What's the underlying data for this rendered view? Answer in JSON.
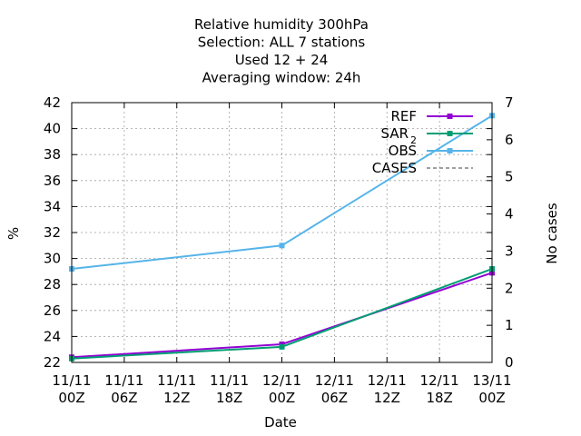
{
  "chart_data": {
    "type": "line",
    "title_lines": [
      "Relative humidity 300hPa",
      "Selection: ALL      7 stations",
      "Used  12 + 24",
      "Averaging window: 24h"
    ],
    "xlabel": "Date",
    "ylabel": "%",
    "y2label": "No cases",
    "x_ticks": [
      {
        "x": 0,
        "line1": "11/11",
        "line2": "00Z"
      },
      {
        "x": 6,
        "line1": "11/11",
        "line2": "06Z"
      },
      {
        "x": 12,
        "line1": "11/11",
        "line2": "12Z"
      },
      {
        "x": 18,
        "line1": "11/11",
        "line2": "18Z"
      },
      {
        "x": 24,
        "line1": "12/11",
        "line2": "00Z"
      },
      {
        "x": 30,
        "line1": "12/11",
        "line2": "06Z"
      },
      {
        "x": 36,
        "line1": "12/11",
        "line2": "12Z"
      },
      {
        "x": 42,
        "line1": "12/11",
        "line2": "18Z"
      },
      {
        "x": 48,
        "line1": "13/11",
        "line2": "00Z"
      }
    ],
    "xlim": [
      0,
      48
    ],
    "ylim": [
      22,
      42
    ],
    "y_ticks": [
      22,
      24,
      26,
      28,
      30,
      32,
      34,
      36,
      38,
      40,
      42
    ],
    "y2lim": [
      0,
      7
    ],
    "y2_ticks": [
      0,
      1,
      2,
      3,
      4,
      5,
      6,
      7
    ],
    "grid": true,
    "legend_position": "top-right",
    "series": [
      {
        "name": "REF",
        "subscript": "",
        "color": "#9400d3",
        "marker": "square",
        "x": [
          0,
          24,
          48
        ],
        "values": [
          22.4,
          23.4,
          28.9
        ]
      },
      {
        "name": "SAR",
        "subscript": "2",
        "color": "#009e73",
        "marker": "square",
        "x": [
          0,
          24,
          48
        ],
        "values": [
          22.3,
          23.2,
          29.2
        ]
      },
      {
        "name": "OBS",
        "subscript": "",
        "color": "#56b4e9",
        "marker": "square",
        "x": [
          0,
          24,
          48
        ],
        "values": [
          29.2,
          31.0,
          41.0
        ]
      },
      {
        "name": "CASES",
        "subscript": "",
        "color": "#808080",
        "dashed": true,
        "x": [],
        "values": []
      }
    ]
  }
}
